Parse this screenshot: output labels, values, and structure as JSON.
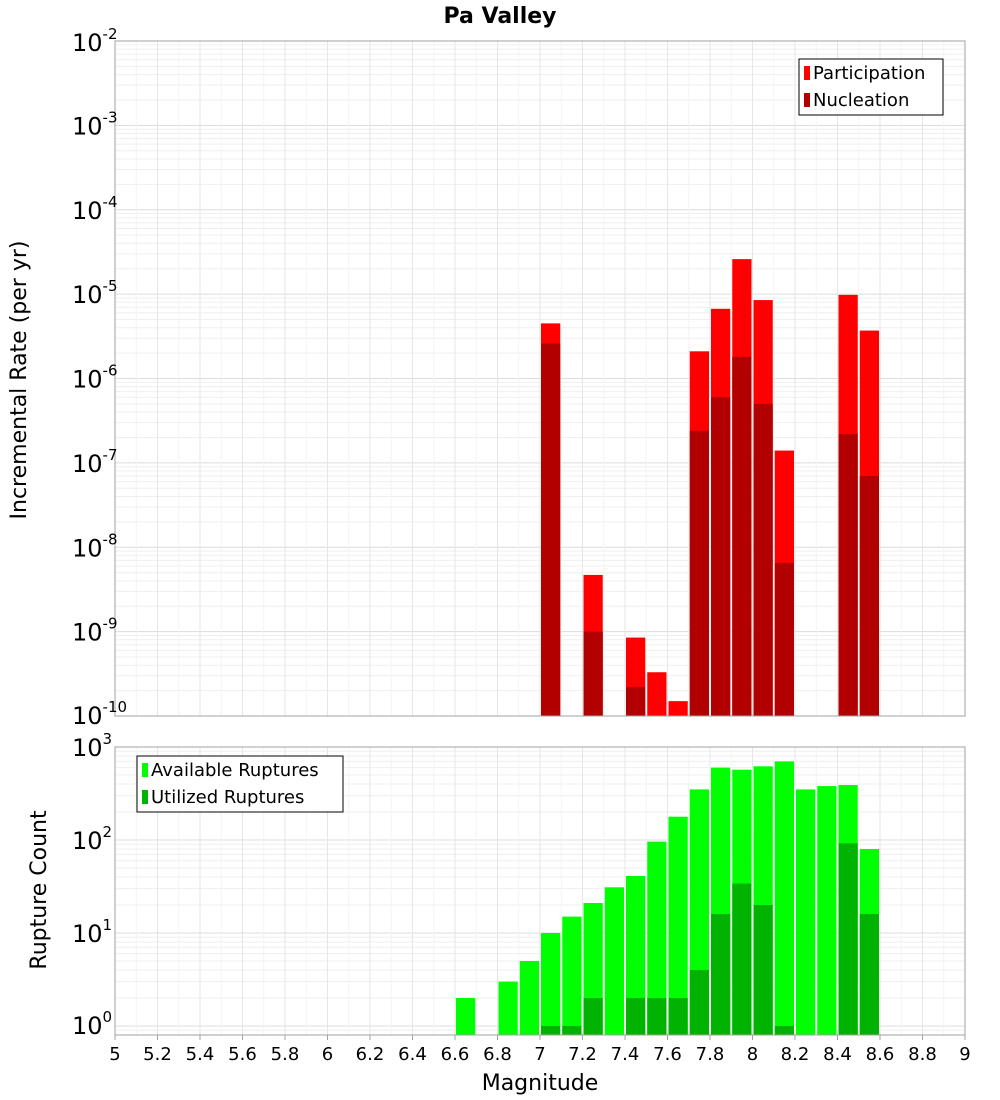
{
  "chart_data": [
    {
      "type": "bar",
      "title": "Pa Valley",
      "xlabel": "",
      "ylabel": "Incremental Rate (per yr)",
      "yscale": "log",
      "xlim": [
        5,
        9
      ],
      "ylim": [
        1e-10,
        0.01
      ],
      "grid": true,
      "legend_position": "top-right",
      "ytick_labels": [
        {
          "base": "10",
          "exp": "-2",
          "value": 0.01
        },
        {
          "base": "10",
          "exp": "-3",
          "value": 0.001
        },
        {
          "base": "10",
          "exp": "-4",
          "value": 0.0001
        },
        {
          "base": "10",
          "exp": "-5",
          "value": 1e-05
        },
        {
          "base": "10",
          "exp": "-6",
          "value": 1e-06
        },
        {
          "base": "10",
          "exp": "-7",
          "value": 1e-07
        },
        {
          "base": "10",
          "exp": "-8",
          "value": 1e-08
        },
        {
          "base": "10",
          "exp": "-9",
          "value": 1e-09
        },
        {
          "base": "10",
          "exp": "-10",
          "value": 1e-10
        }
      ],
      "series": [
        {
          "name": "Participation",
          "color": "#ff0000",
          "points": [
            {
              "x": 7.05,
              "y": 4.5e-06
            },
            {
              "x": 7.25,
              "y": 4.7e-09
            },
            {
              "x": 7.45,
              "y": 8.5e-10
            },
            {
              "x": 7.55,
              "y": 3.3e-10
            },
            {
              "x": 7.65,
              "y": 1.5e-10
            },
            {
              "x": 7.75,
              "y": 2.1e-06
            },
            {
              "x": 7.85,
              "y": 6.7e-06
            },
            {
              "x": 7.95,
              "y": 2.6e-05
            },
            {
              "x": 8.05,
              "y": 8.5e-06
            },
            {
              "x": 8.15,
              "y": 1.4e-07
            },
            {
              "x": 8.45,
              "y": 9.8e-06
            },
            {
              "x": 8.55,
              "y": 3.7e-06
            }
          ]
        },
        {
          "name": "Nucleation",
          "color": "#b20000",
          "points": [
            {
              "x": 7.05,
              "y": 2.6e-06
            },
            {
              "x": 7.25,
              "y": 1e-09
            },
            {
              "x": 7.45,
              "y": 2.2e-10
            },
            {
              "x": 7.75,
              "y": 2.4e-07
            },
            {
              "x": 7.85,
              "y": 6e-07
            },
            {
              "x": 7.95,
              "y": 1.8e-06
            },
            {
              "x": 8.05,
              "y": 5e-07
            },
            {
              "x": 8.15,
              "y": 6.5e-09
            },
            {
              "x": 8.45,
              "y": 2.2e-07
            },
            {
              "x": 8.55,
              "y": 7e-08
            }
          ]
        }
      ]
    },
    {
      "type": "bar",
      "title": "",
      "xlabel": "Magnitude",
      "ylabel": "Rupture Count",
      "yscale": "log",
      "xlim": [
        5,
        9
      ],
      "ylim": [
        0.8,
        1000
      ],
      "grid": true,
      "legend_position": "top-left",
      "xtick_labels": [
        "5",
        "5.2",
        "5.4",
        "5.6",
        "5.8",
        "6",
        "6.2",
        "6.4",
        "6.6",
        "6.8",
        "7",
        "7.2",
        "7.4",
        "7.6",
        "7.8",
        "8",
        "8.2",
        "8.4",
        "8.6",
        "8.8",
        "9"
      ],
      "ytick_labels": [
        {
          "base": "10",
          "exp": "3",
          "value": 1000
        },
        {
          "base": "10",
          "exp": "2",
          "value": 100
        },
        {
          "base": "10",
          "exp": "1",
          "value": 10
        },
        {
          "base": "10",
          "exp": "0",
          "value": 1
        }
      ],
      "series": [
        {
          "name": "Available Ruptures",
          "color": "#00ff00",
          "points": [
            {
              "x": 6.65,
              "y": 2
            },
            {
              "x": 6.85,
              "y": 3
            },
            {
              "x": 6.95,
              "y": 5
            },
            {
              "x": 7.05,
              "y": 10
            },
            {
              "x": 7.15,
              "y": 15
            },
            {
              "x": 7.25,
              "y": 21
            },
            {
              "x": 7.35,
              "y": 31
            },
            {
              "x": 7.45,
              "y": 41
            },
            {
              "x": 7.55,
              "y": 96
            },
            {
              "x": 7.65,
              "y": 178
            },
            {
              "x": 7.75,
              "y": 350
            },
            {
              "x": 7.85,
              "y": 600
            },
            {
              "x": 7.95,
              "y": 570
            },
            {
              "x": 8.05,
              "y": 620
            },
            {
              "x": 8.15,
              "y": 700
            },
            {
              "x": 8.25,
              "y": 350
            },
            {
              "x": 8.35,
              "y": 380
            },
            {
              "x": 8.45,
              "y": 390
            },
            {
              "x": 8.55,
              "y": 80
            }
          ]
        },
        {
          "name": "Utilized Ruptures",
          "color": "#00b300",
          "points": [
            {
              "x": 7.05,
              "y": 1
            },
            {
              "x": 7.15,
              "y": 1
            },
            {
              "x": 7.25,
              "y": 2
            },
            {
              "x": 7.45,
              "y": 2
            },
            {
              "x": 7.55,
              "y": 2
            },
            {
              "x": 7.65,
              "y": 2
            },
            {
              "x": 7.75,
              "y": 4
            },
            {
              "x": 7.85,
              "y": 16
            },
            {
              "x": 7.95,
              "y": 34
            },
            {
              "x": 8.05,
              "y": 20
            },
            {
              "x": 8.15,
              "y": 1
            },
            {
              "x": 8.45,
              "y": 92
            },
            {
              "x": 8.55,
              "y": 16
            }
          ]
        }
      ]
    }
  ]
}
